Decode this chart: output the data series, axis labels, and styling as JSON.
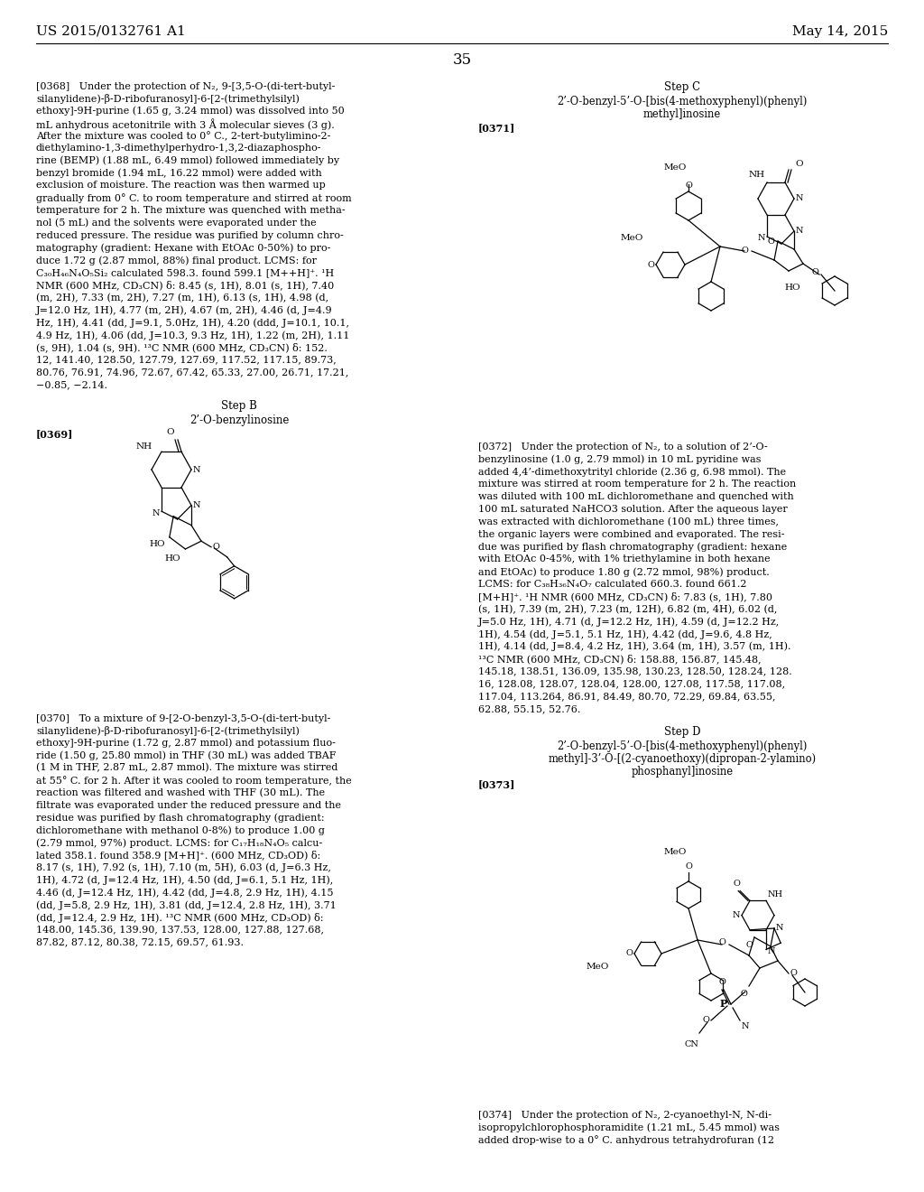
{
  "page_header_left": "US 2015/0132761 A1",
  "page_header_right": "May 14, 2015",
  "page_number": "35",
  "background_color": "#ffffff",
  "text_color": "#000000"
}
